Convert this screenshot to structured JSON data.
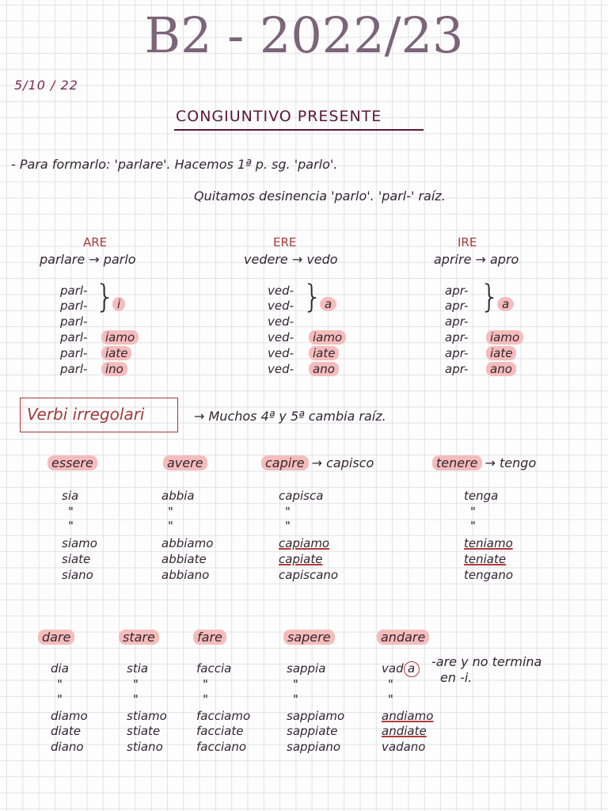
{
  "title": "B2 - 2022/23",
  "date": "5/10 / 22",
  "heading": "CONGIUNTIVO PRESENTE",
  "intro": {
    "line1": "- Para formarlo: 'parlare'. Hacemos 1ª p. sg. 'parlo'.",
    "line2": "Quitamos desinencia 'parlo'. 'parl-' raíz."
  },
  "regular": [
    {
      "label": "ARE",
      "example": "parlare → parlo",
      "stem": "parl-",
      "singular_ending": "i",
      "endings": [
        "iamo",
        "iate",
        "ino"
      ]
    },
    {
      "label": "ERE",
      "example": "vedere → vedo",
      "stem": "ved-",
      "singular_ending": "a",
      "endings": [
        "iamo",
        "iate",
        "ano"
      ]
    },
    {
      "label": "IRE",
      "example": "aprire → apro",
      "stem": "apr-",
      "singular_ending": "a",
      "endings": [
        "iamo",
        "iate",
        "ano"
      ]
    }
  ],
  "irregular": {
    "label": "Verbi irregolari",
    "note": "→ Muchos 4ª y 5ª cambia raíz.",
    "highlight_color": "#f5bcbc",
    "accent_color": "#a33a3a",
    "group1": [
      {
        "verb": "essere",
        "extra": "",
        "forms": [
          "sia",
          "\"",
          "\"",
          "siamo",
          "siate",
          "siano"
        ],
        "underlined": []
      },
      {
        "verb": "avere",
        "extra": "",
        "forms": [
          "abbia",
          "\"",
          "\"",
          "abbiamo",
          "abbiate",
          "abbiano"
        ],
        "underlined": []
      },
      {
        "verb": "capire",
        "extra": "→ capisco",
        "forms": [
          "capisca",
          "\"",
          "\"",
          "capiamo",
          "capiate",
          "capiscano"
        ],
        "underlined": [
          3,
          4
        ]
      },
      {
        "verb": "tenere",
        "extra": "→ tengo",
        "forms": [
          "tenga",
          "\"",
          "\"",
          "teniamo",
          "teniate",
          "tengano"
        ],
        "underlined": [
          3,
          4
        ]
      }
    ],
    "group2": [
      {
        "verb": "dare",
        "forms": [
          "dia",
          "\"",
          "\"",
          "diamo",
          "diate",
          "diano"
        ],
        "underlined": []
      },
      {
        "verb": "stare",
        "forms": [
          "stia",
          "\"",
          "\"",
          "stiamo",
          "stiate",
          "stiano"
        ],
        "underlined": []
      },
      {
        "verb": "fare",
        "forms": [
          "faccia",
          "\"",
          "\"",
          "facciamo",
          "facciate",
          "facciano"
        ],
        "underlined": []
      },
      {
        "verb": "sapere",
        "forms": [
          "sappia",
          "\"",
          "\"",
          "sappiamo",
          "sappiate",
          "sappiano"
        ],
        "underlined": []
      },
      {
        "verb": "andare",
        "forms": [
          "vad",
          "\"",
          "\"",
          "andiamo",
          "andiate",
          "vadano"
        ],
        "underlined": [
          3,
          4
        ],
        "circled": "a"
      }
    ],
    "andare_note": [
      "-are y no termina",
      "en -i."
    ]
  }
}
